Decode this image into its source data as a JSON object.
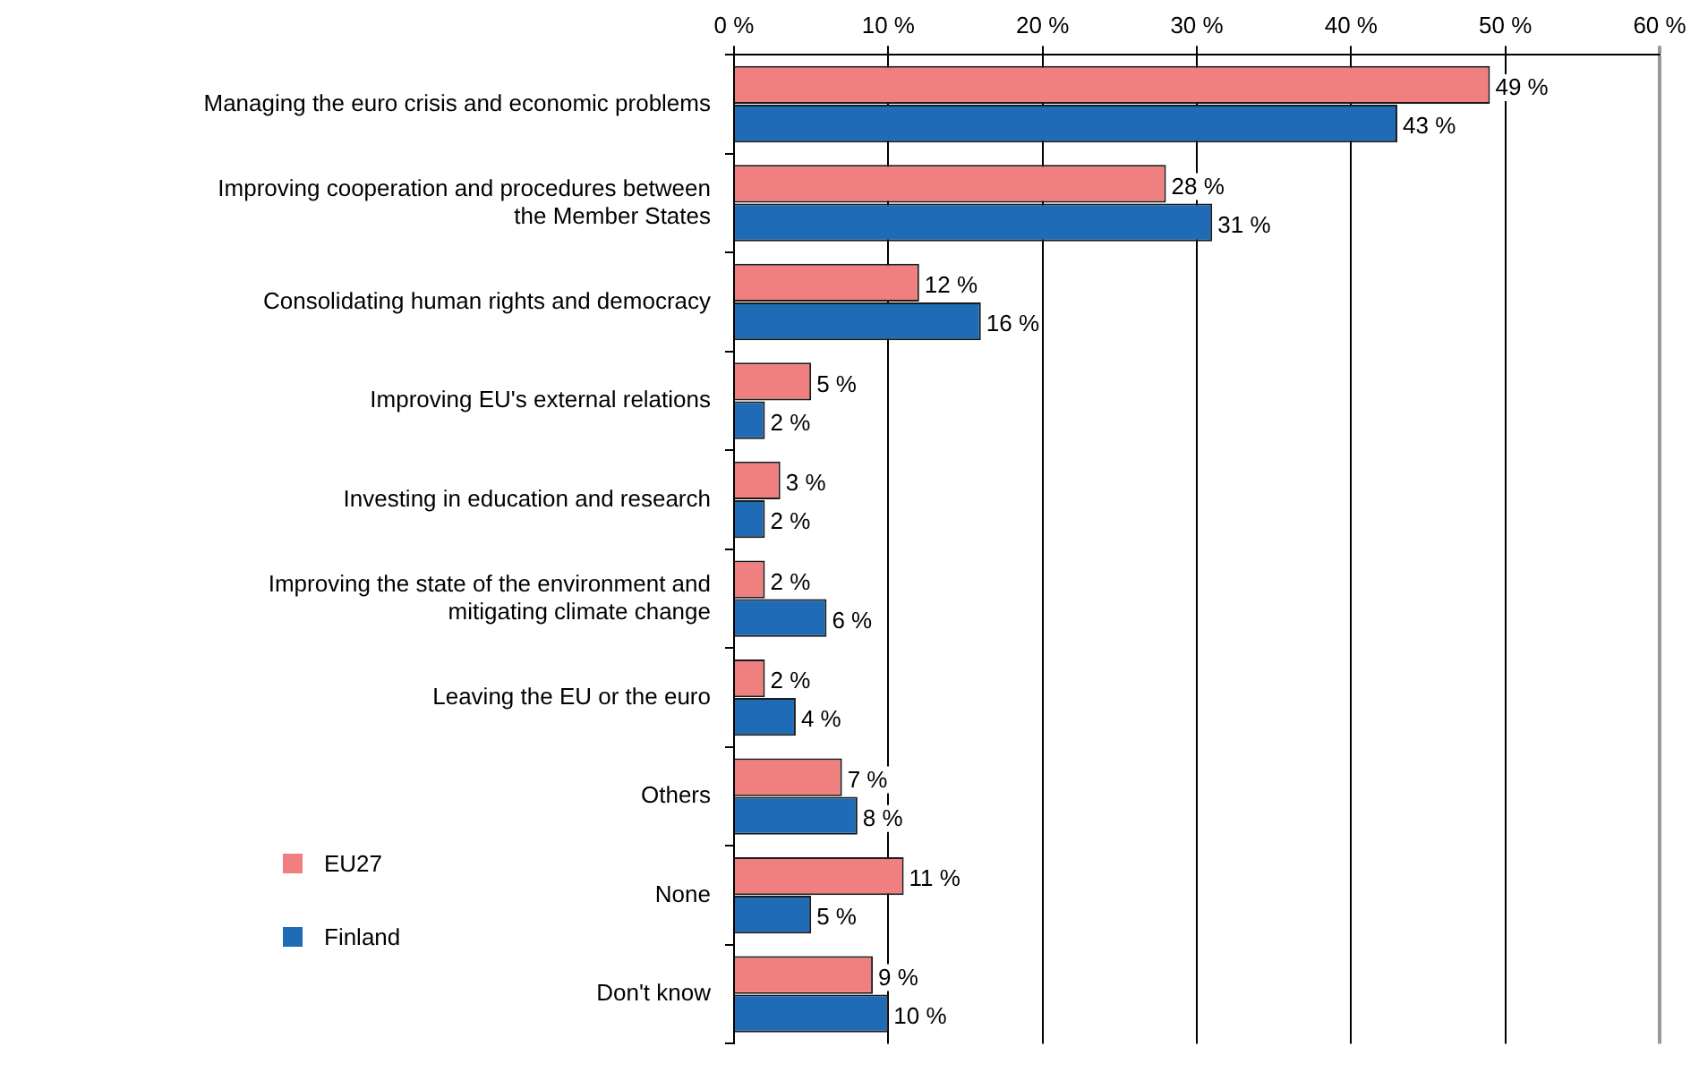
{
  "chart_data": {
    "type": "bar",
    "orientation": "horizontal",
    "categories": [
      "Managing the euro crisis and economic problems",
      "Improving cooperation and procedures between the Member States",
      "Consolidating human rights and democracy",
      "Improving EU's external relations",
      "Investing in education and research",
      "Improving the state of the environment and mitigating climate change",
      "Leaving the EU or the euro",
      "Others",
      "None",
      "Don't know"
    ],
    "series": [
      {
        "name": "EU27",
        "color": "#f08080",
        "values": [
          49,
          28,
          12,
          5,
          3,
          2,
          2,
          7,
          11,
          9
        ],
        "value_labels": [
          "49 %",
          "28 %",
          "12 %",
          "5 %",
          "3 %",
          "2 %",
          "2 %",
          "7 %",
          "11 %",
          "9 %"
        ]
      },
      {
        "name": "Finland",
        "color": "#1f6bb5",
        "values": [
          43,
          31,
          16,
          2,
          2,
          6,
          4,
          8,
          5,
          10
        ],
        "value_labels": [
          "43 %",
          "31 %",
          "16 %",
          "2 %",
          "2 %",
          "6 %",
          "4 %",
          "8 %",
          "5 %",
          "10 %"
        ]
      }
    ],
    "xlim": [
      0,
      60
    ],
    "xticks": [
      {
        "value": 0,
        "label": "0 %"
      },
      {
        "value": 10,
        "label": "10 %"
      },
      {
        "value": 20,
        "label": "20 %"
      },
      {
        "value": 30,
        "label": "30 %"
      },
      {
        "value": 40,
        "label": "40 %"
      },
      {
        "value": 50,
        "label": "50 %"
      },
      {
        "value": 60,
        "label": "60 %"
      }
    ],
    "grid": "x",
    "legend": "bottom left"
  }
}
